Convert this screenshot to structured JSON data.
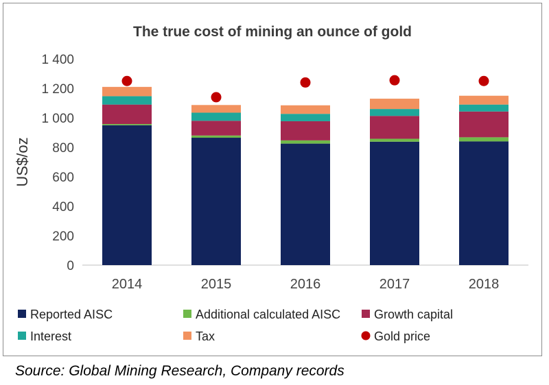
{
  "chart_data": {
    "type": "bar",
    "stacked": true,
    "title": "The true cost of mining an ounce of gold",
    "xlabel": "",
    "ylabel": "US$/oz",
    "ylim": [
      0,
      1400
    ],
    "yticks": [
      0,
      200,
      400,
      600,
      800,
      1000,
      1200,
      1400
    ],
    "ytick_labels": [
      "0",
      "200",
      "400",
      "600",
      "800",
      "1 000",
      "1 200",
      "1 400"
    ],
    "grid": false,
    "legend_position": "bottom",
    "categories": [
      "2014",
      "2015",
      "2016",
      "2017",
      "2018"
    ],
    "series": [
      {
        "name": "Reported AISC",
        "color": "#12245c",
        "values": [
          950,
          865,
          825,
          838,
          840
        ]
      },
      {
        "name": "Additional calculated AISC",
        "color": "#70b94a",
        "values": [
          8,
          15,
          22,
          20,
          28
        ]
      },
      {
        "name": "Growth capital",
        "color": "#a42850",
        "values": [
          132,
          100,
          130,
          155,
          175
        ]
      },
      {
        "name": "Interest",
        "color": "#1fa79a",
        "values": [
          57,
          55,
          50,
          47,
          47
        ]
      },
      {
        "name": "Tax",
        "color": "#f2925f",
        "values": [
          63,
          52,
          58,
          70,
          60
        ]
      }
    ],
    "points": {
      "name": "Gold price",
      "color": "#c00000",
      "values": [
        1250,
        1140,
        1240,
        1255,
        1250
      ]
    }
  },
  "source": "Source: Global Mining Research, Company records"
}
